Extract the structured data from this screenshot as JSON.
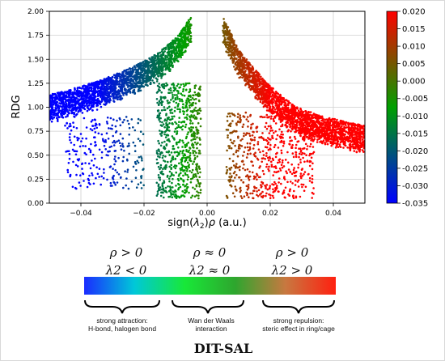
{
  "chart_data": {
    "type": "scatter",
    "xlabel": "sign(λ2)ρ (a.u.)",
    "ylabel": "RDG",
    "xlim": [
      -0.05,
      0.05
    ],
    "ylim": [
      0.0,
      2.0
    ],
    "x_ticks": [
      "-0.04",
      "-0.02",
      "0.00",
      "0.02",
      "0.04"
    ],
    "y_ticks": [
      "0.00",
      "0.25",
      "0.50",
      "0.75",
      "1.00",
      "1.25",
      "1.50",
      "1.75",
      "2.00"
    ],
    "grid": true,
    "colorbar": {
      "range": [
        -0.035,
        0.02
      ],
      "ticks": [
        "0.020",
        "0.015",
        "0.010",
        "0.005",
        "0.000",
        "-0.005",
        "-0.010",
        "-0.015",
        "-0.020",
        "-0.025",
        "-0.030",
        "-0.035"
      ],
      "colors": [
        "#0000ff",
        "#00a000",
        "#ff0000"
      ]
    },
    "series": [
      {
        "x": [
          -0.05,
          -0.045,
          -0.04,
          -0.035,
          -0.03,
          -0.025,
          -0.02,
          -0.015,
          -0.01,
          -0.005
        ],
        "y": [
          1.13,
          1.17,
          1.22,
          1.27,
          1.33,
          1.4,
          1.48,
          1.58,
          1.72,
          1.95
        ]
      },
      {
        "x": [
          0.005,
          0.01,
          0.015,
          0.02,
          0.025,
          0.03,
          0.035,
          0.04,
          0.045,
          0.05
        ],
        "y": [
          1.95,
          1.6,
          1.4,
          1.22,
          1.08,
          0.98,
          0.92,
          0.88,
          0.84,
          0.81
        ]
      }
    ]
  },
  "legend": {
    "conditions": [
      {
        "line1": "ρ > 0",
        "line2": "λ2 < 0"
      },
      {
        "line1": "ρ ≈ 0",
        "line2": "λ2 ≈ 0"
      },
      {
        "line1": "ρ > 0",
        "line2": "λ2 > 0"
      }
    ],
    "gradient_colors": [
      "#1a2cff",
      "#00c8d8",
      "#18e838",
      "#2ea62e",
      "#c87840",
      "#ff2010"
    ],
    "descriptions": [
      {
        "line1": "strong attraction:",
        "line2": "H-bond, halogen bond"
      },
      {
        "line1": "Wan der Waals",
        "line2": "interaction"
      },
      {
        "line1": "strong repulsion:",
        "line2": "steric effect in ring/cage"
      }
    ]
  },
  "title": "DIT-SAL"
}
